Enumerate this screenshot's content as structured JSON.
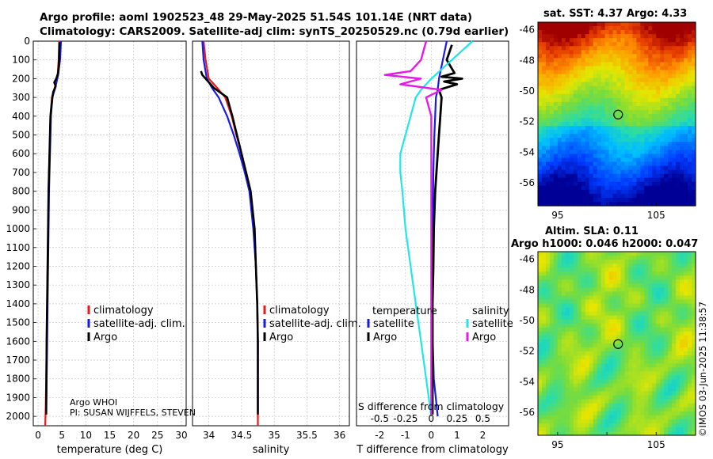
{
  "header": {
    "line1": "Argo profile: aoml 1902523_48 29-May-2025 51.54S 101.14E (NRT data)",
    "line2": "Climatology: CARS2009. Satellite-adj clim: synTS_20250529.nc (0.79d earlier)"
  },
  "credit": "©IMOS 03-Jun-2025 11:38:57",
  "colors": {
    "climatology": "#e41a1c",
    "satellite": "#1a1ae6",
    "argo": "#000000",
    "sat_salinity": "#22e6e6",
    "argo_salinity": "#e61ae6"
  },
  "chart_data": [
    {
      "id": "temperature",
      "type": "line",
      "xlabel": "temperature (deg C)",
      "ylabel": "",
      "xlim": [
        -1,
        31
      ],
      "ylim": [
        2050,
        0
      ],
      "xticks": [
        0,
        5,
        10,
        15,
        20,
        25,
        30
      ],
      "xtick_labels": [
        "0",
        "5",
        "10",
        "15",
        "20",
        "25",
        "30"
      ],
      "yticks": [
        0,
        100,
        200,
        300,
        400,
        500,
        600,
        700,
        800,
        900,
        1000,
        1100,
        1200,
        1300,
        1400,
        1500,
        1600,
        1700,
        1800,
        1900,
        2000
      ],
      "ytick_labels": [
        "0",
        "100",
        "200",
        "300",
        "400",
        "500",
        "600",
        "700",
        "800",
        "900",
        "1000",
        "1100",
        "1200",
        "1300",
        "1400",
        "1500",
        "1600",
        "1700",
        "1800",
        "1900",
        "2000"
      ],
      "grid": true,
      "legend": [
        "climatology",
        "satellite-adj. clim.",
        "Argo"
      ],
      "annotations": [
        "Argo WHOI",
        "PI: SUSAN WIJFFELS, STEVEN"
      ],
      "series": [
        {
          "name": "climatology",
          "x": [
            4.4,
            4.3,
            4.1,
            3.5,
            2.9,
            2.6,
            2.5,
            2.4,
            2.3,
            2.2,
            2.1,
            2.0,
            1.9,
            1.8,
            1.7,
            1.6,
            1.5
          ],
          "y": [
            0,
            100,
            180,
            250,
            300,
            400,
            500,
            600,
            700,
            800,
            1000,
            1200,
            1400,
            1600,
            1800,
            1950,
            2050
          ]
        },
        {
          "name": "satellite-adj. clim.",
          "x": [
            4.8,
            4.6,
            4.2,
            3.6,
            3.0,
            2.7,
            2.6,
            2.5,
            2.4,
            2.3,
            2.2,
            2.1,
            2.0,
            1.9,
            1.8,
            1.7
          ],
          "y": [
            0,
            100,
            180,
            250,
            300,
            400,
            500,
            600,
            700,
            800,
            1000,
            1200,
            1400,
            1600,
            1800,
            1980
          ]
        },
        {
          "name": "Argo",
          "x": [
            4.5,
            4.4,
            4.2,
            3.8,
            3.4,
            3.7,
            3.2,
            3.0,
            2.8,
            2.6,
            2.5,
            2.4,
            2.3,
            2.2,
            2.1,
            2.0,
            1.9,
            1.8,
            1.7
          ],
          "y": [
            5,
            100,
            170,
            200,
            220,
            240,
            270,
            300,
            350,
            400,
            500,
            600,
            700,
            800,
            1000,
            1200,
            1400,
            1600,
            1990
          ]
        }
      ]
    },
    {
      "id": "salinity",
      "type": "line",
      "xlabel": "salinity",
      "xlim": [
        33.75,
        36.15
      ],
      "ylim": [
        2050,
        0
      ],
      "xticks": [
        34,
        34.5,
        35,
        35.5,
        36
      ],
      "xtick_labels": [
        "34",
        "34.5",
        "35",
        "35.5",
        "36"
      ],
      "grid": true,
      "legend": [
        "climatology",
        "satellite-adj. clim.",
        "Argo"
      ],
      "series": [
        {
          "name": "climatology",
          "x": [
            33.92,
            33.95,
            34.0,
            34.13,
            34.25,
            34.35,
            34.42,
            34.5,
            34.56,
            34.63,
            34.69,
            34.72,
            34.74,
            34.75,
            34.75,
            34.75,
            34.75
          ],
          "y": [
            0,
            100,
            200,
            250,
            300,
            400,
            500,
            600,
            700,
            800,
            1000,
            1200,
            1400,
            1600,
            1800,
            1950,
            2050
          ]
        },
        {
          "name": "satellite-adj. clim.",
          "x": [
            33.9,
            33.92,
            33.97,
            34.05,
            34.15,
            34.28,
            34.38,
            34.47,
            34.55,
            34.62,
            34.68,
            34.72,
            34.74,
            34.75,
            34.75,
            34.75
          ],
          "y": [
            0,
            100,
            200,
            250,
            300,
            400,
            500,
            600,
            700,
            800,
            1000,
            1200,
            1400,
            1600,
            1800,
            1980
          ]
        },
        {
          "name": "Argo",
          "x": [
            33.88,
            33.9,
            33.95,
            34.08,
            34.28,
            34.36,
            34.43,
            34.5,
            34.57,
            34.64,
            34.7,
            34.72,
            34.74,
            34.75,
            34.75
          ],
          "y": [
            160,
            180,
            200,
            250,
            300,
            400,
            500,
            600,
            700,
            800,
            1000,
            1200,
            1400,
            1600,
            1990
          ]
        }
      ]
    },
    {
      "id": "differences",
      "type": "line",
      "xlabel": "T difference from climatology",
      "xlabel2": "S difference from climatology",
      "xlim": [
        -2.9,
        3.0
      ],
      "ylim": [
        2050,
        0
      ],
      "xticks": [
        -2,
        -1,
        0,
        1,
        2
      ],
      "xtick_labels": [
        "-2",
        "-1",
        "0",
        "1",
        "2"
      ],
      "xticks2": [
        -0.5,
        -0.25,
        0,
        0.25,
        0.5
      ],
      "xtick_labels2": [
        "-0.5",
        "-0.25",
        "0",
        "0.25",
        "0.5"
      ],
      "grid": true,
      "legend_temperature_title": "temperature",
      "legend_salinity_title": "salinity",
      "legend_temperature": [
        "satellite",
        "Argo"
      ],
      "legend_salinity": [
        "satellite",
        "Argo"
      ],
      "series": [
        {
          "name": "T satellite",
          "x": [
            0.6,
            0.45,
            0.3,
            0.25,
            0.18,
            0.15,
            0.12,
            0.1,
            0.08,
            0.07,
            0.06,
            0.05,
            0.05,
            0.06,
            0.1,
            0.25
          ],
          "y": [
            0,
            100,
            200,
            260,
            300,
            400,
            500,
            600,
            700,
            800,
            1000,
            1200,
            1400,
            1600,
            1800,
            2000
          ]
        },
        {
          "name": "T Argo",
          "x": [
            0.8,
            0.6,
            0.9,
            0.4,
            1.2,
            0.5,
            1.0,
            0.3,
            0.4,
            0.35,
            0.3,
            0.25,
            0.2,
            0.15,
            0.1,
            0.08,
            0.05,
            0.05,
            0.05
          ],
          "y": [
            20,
            100,
            170,
            190,
            200,
            215,
            230,
            260,
            300,
            400,
            500,
            600,
            700,
            800,
            1000,
            1200,
            1400,
            1600,
            1990
          ]
        },
        {
          "name": "S satellite",
          "x": [
            0.4,
            0.2,
            0.0,
            -0.1,
            -0.15,
            -0.2,
            -0.25,
            -0.3,
            -0.3,
            -0.28,
            -0.25,
            -0.2,
            -0.15,
            -0.1,
            -0.05,
            0.0
          ],
          "y": [
            0,
            100,
            200,
            260,
            300,
            400,
            500,
            600,
            700,
            800,
            1000,
            1200,
            1400,
            1600,
            1800,
            2000
          ]
        },
        {
          "name": "S Argo",
          "x": [
            -0.05,
            -0.1,
            -0.2,
            -0.45,
            -0.1,
            -0.3,
            0.1,
            -0.05,
            0.0,
            0.0,
            0.0,
            0.0,
            0.0,
            0.0,
            0.0
          ],
          "y": [
            0,
            100,
            160,
            180,
            200,
            230,
            260,
            300,
            400,
            600,
            800,
            1000,
            1400,
            1800,
            1990
          ]
        }
      ]
    },
    {
      "id": "sst_map",
      "type": "heatmap",
      "title": "sat. SST: 4.37 Argo: 4.33",
      "xlim": [
        93,
        109
      ],
      "ylim": [
        -57.5,
        -45.5
      ],
      "xticks": [
        95,
        100,
        105
      ],
      "xtick_labels": [
        "95",
        "",
        "105"
      ],
      "yticks": [
        -46,
        -48,
        -50,
        -52,
        -54,
        -56
      ],
      "ytick_labels": [
        "-46",
        "-48",
        "-50",
        "-52",
        "-54",
        "-56"
      ],
      "marker": {
        "lon": 101.14,
        "lat": -51.54
      }
    },
    {
      "id": "sla_map",
      "type": "heatmap",
      "title": "Altim. SLA: 0.11",
      "subtitle": "Argo h1000: 0.046 h2000: 0.047",
      "xlim": [
        93,
        109
      ],
      "ylim": [
        -57.5,
        -45.5
      ],
      "xticks": [
        95,
        100,
        105
      ],
      "xtick_labels": [
        "95",
        "",
        "105"
      ],
      "yticks": [
        -46,
        -48,
        -50,
        -52,
        -54,
        -56
      ],
      "ytick_labels": [
        "-46",
        "-48",
        "-50",
        "-52",
        "-54",
        "-56"
      ],
      "marker": {
        "lon": 101.14,
        "lat": -51.54
      }
    }
  ]
}
